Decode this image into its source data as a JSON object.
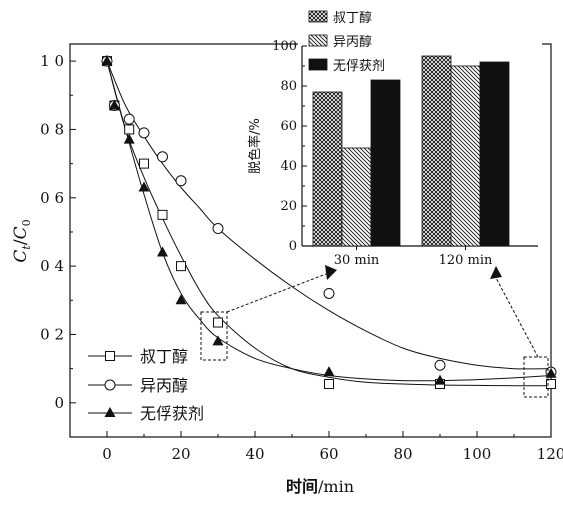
{
  "chart_data": [
    {
      "type": "line",
      "xlabel_cn": "时间",
      "xlabel_unit": "/min",
      "ylabel_main": "C",
      "ylabel_sub1": "t",
      "ylabel_slash": "/",
      "ylabel_sub2": "0",
      "xlim": [
        -10,
        120
      ],
      "ylim": [
        -0.1,
        1.05
      ],
      "xticks": [
        0,
        20,
        40,
        60,
        80,
        100,
        120
      ],
      "xtick_labels": [
        "0",
        "20",
        "40",
        "60",
        "80",
        "100",
        "120"
      ],
      "yticks": [
        0,
        0.2,
        0.4,
        0.6,
        0.8,
        1.0
      ],
      "ytick_labels": [
        "0",
        "0 2",
        "0 4",
        "0 6",
        "0 8",
        "1 0"
      ],
      "legend_position": "bottom-left",
      "series": [
        {
          "name": "叔丁醇",
          "marker": "square",
          "x": [
            0,
            2,
            6,
            10,
            15,
            20,
            30,
            60,
            90,
            120
          ],
          "y": [
            1.0,
            0.87,
            0.8,
            0.7,
            0.55,
            0.4,
            0.235,
            0.055,
            0.055,
            0.055
          ],
          "fit_x": [
            0,
            5,
            10,
            15,
            20,
            25,
            30,
            40,
            50,
            60,
            70,
            80,
            90,
            100,
            110,
            120
          ],
          "fit_y": [
            1.0,
            0.8,
            0.66,
            0.54,
            0.43,
            0.33,
            0.255,
            0.16,
            0.1,
            0.075,
            0.06,
            0.055,
            0.052,
            0.051,
            0.05,
            0.05
          ]
        },
        {
          "name": "异丙醇",
          "marker": "circle",
          "x": [
            0,
            2,
            6,
            10,
            15,
            20,
            30,
            60,
            90,
            120
          ],
          "y": [
            1.0,
            0.87,
            0.83,
            0.79,
            0.72,
            0.65,
            0.51,
            0.32,
            0.11,
            0.09
          ],
          "fit_x": [
            0,
            5,
            10,
            15,
            20,
            25,
            30,
            40,
            50,
            60,
            70,
            80,
            90,
            100,
            110,
            120
          ],
          "fit_y": [
            1.0,
            0.87,
            0.78,
            0.7,
            0.63,
            0.57,
            0.51,
            0.42,
            0.34,
            0.27,
            0.21,
            0.16,
            0.13,
            0.11,
            0.1,
            0.1
          ]
        },
        {
          "name": "无俘获剂",
          "marker": "triangle",
          "x": [
            0,
            2,
            6,
            10,
            15,
            20,
            30,
            60,
            90,
            120
          ],
          "y": [
            1.0,
            0.87,
            0.77,
            0.63,
            0.44,
            0.3,
            0.18,
            0.09,
            0.065,
            0.085
          ],
          "fit_x": [
            0,
            5,
            10,
            15,
            20,
            25,
            30,
            40,
            50,
            60,
            70,
            80,
            90,
            100,
            110,
            120
          ],
          "fit_y": [
            1.0,
            0.8,
            0.61,
            0.44,
            0.32,
            0.245,
            0.19,
            0.13,
            0.1,
            0.08,
            0.07,
            0.065,
            0.065,
            0.068,
            0.073,
            0.08
          ]
        }
      ]
    },
    {
      "type": "bar",
      "ylabel": "脱色率/%",
      "ylim": [
        0,
        100
      ],
      "yticks": [
        0,
        20,
        40,
        60,
        80,
        100
      ],
      "categories": [
        "30 min",
        "120 min"
      ],
      "legend_position": "top",
      "series": [
        {
          "name": "叔丁醇",
          "pattern": "crosshatch",
          "values": [
            77,
            95
          ]
        },
        {
          "name": "异丙醇",
          "pattern": "diagonal",
          "values": [
            49,
            90
          ]
        },
        {
          "name": "无俘获剂",
          "pattern": "solid",
          "values": [
            83,
            92
          ]
        }
      ]
    }
  ]
}
